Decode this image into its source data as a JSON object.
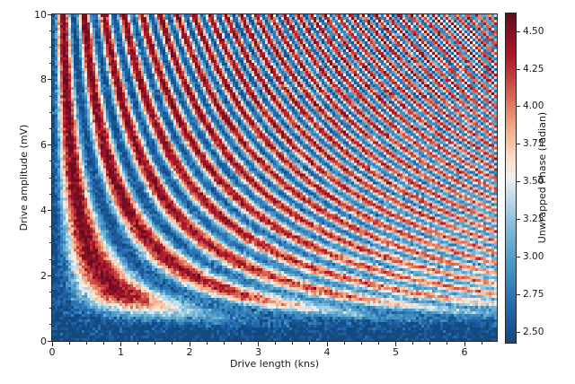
{
  "figure": {
    "background": "#ffffff",
    "text_color": "#1a1a1a",
    "spine_color": "#262626"
  },
  "chart_data": {
    "type": "heatmap",
    "title": "",
    "xlabel": "Drive length (kns)",
    "ylabel": "Drive amplitude (mV)",
    "colorbar_label": "Unwrapped Phase (radian)",
    "x_range": [
      0,
      6.47
    ],
    "y_range": [
      0,
      10
    ],
    "x_major_ticks": [
      0,
      1,
      2,
      3,
      4,
      5,
      6
    ],
    "x_minor_step": 0.25,
    "y_major_ticks": [
      0,
      2,
      4,
      6,
      8,
      10
    ],
    "y_minor_step": 0.5,
    "value_range": [
      2.43,
      4.62
    ],
    "colorbar_tick_values": [
      2.5,
      2.75,
      3.0,
      3.25,
      3.5,
      3.75,
      4.0,
      4.25,
      4.5
    ],
    "colorbar_tick_labels": [
      "2.50",
      "2.75",
      "3.00",
      "3.25",
      "3.50",
      "3.75",
      "4.00",
      "4.25",
      "4.50"
    ],
    "legend_position": "right-colorbar",
    "grid": false,
    "colormap": {
      "name": "RdBu_r-truncated",
      "stops": [
        [
          0.0,
          "#124a80"
        ],
        [
          0.1,
          "#2166ac"
        ],
        [
          0.22,
          "#4393c3"
        ],
        [
          0.34,
          "#7ab8d8"
        ],
        [
          0.44,
          "#bedceb"
        ],
        [
          0.5,
          "#eff1ee"
        ],
        [
          0.56,
          "#fadfc8"
        ],
        [
          0.66,
          "#f4a582"
        ],
        [
          0.76,
          "#d6604d"
        ],
        [
          0.87,
          "#b2182b"
        ],
        [
          1.0,
          "#670c21"
        ]
      ]
    },
    "model": {
      "description": "Rabi-chevron-like interference fringes: unwrapped phase oscillates along hyperbola-like curves of constant drive-amplitude x drive-length. phase(t,A) = base + amp * fA(A) * (1 - ft(t,A)*cos(k*A*t*(1+beta*t))) + gaussian noise; fA = smoothstep between fA_lo and fA_hi (contrast vanishes at low amplitude, bottom stays dark blue); ft = exp(-t/(tau0+tauA*A)) (fringes wash out toward pale at long length / low amplitude).",
      "base": 2.43,
      "amp": 1.095,
      "k": 1.93,
      "beta": 0.09,
      "fA_lo": 0.25,
      "fA_hi": 1.45,
      "tau0": 3.0,
      "tauA": 2.5,
      "noise_sigma": 0.14,
      "nx": 165,
      "ny": 121,
      "seed": 7
    }
  }
}
